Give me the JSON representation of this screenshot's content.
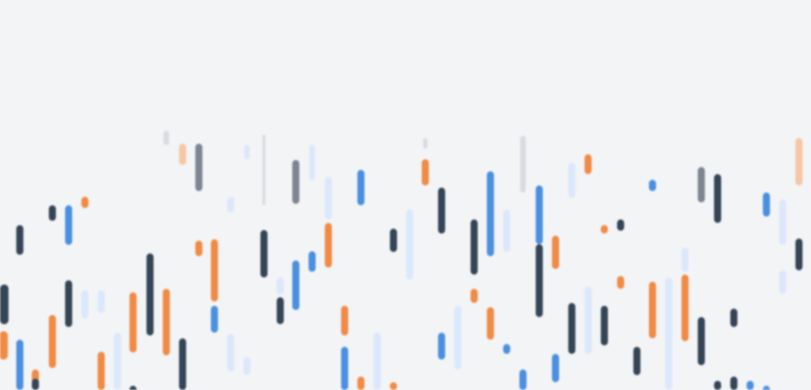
{
  "background_color": "#f3f4f6",
  "palette": {
    "navy": "#344556",
    "blue": "#4a8fe0",
    "orange": "#f08a45",
    "pale_blue": "#dbe8fb",
    "gray": "#7d8590",
    "pale_orange": "#f7c6a4",
    "pale_gray": "#d9dbe0"
  }
}
